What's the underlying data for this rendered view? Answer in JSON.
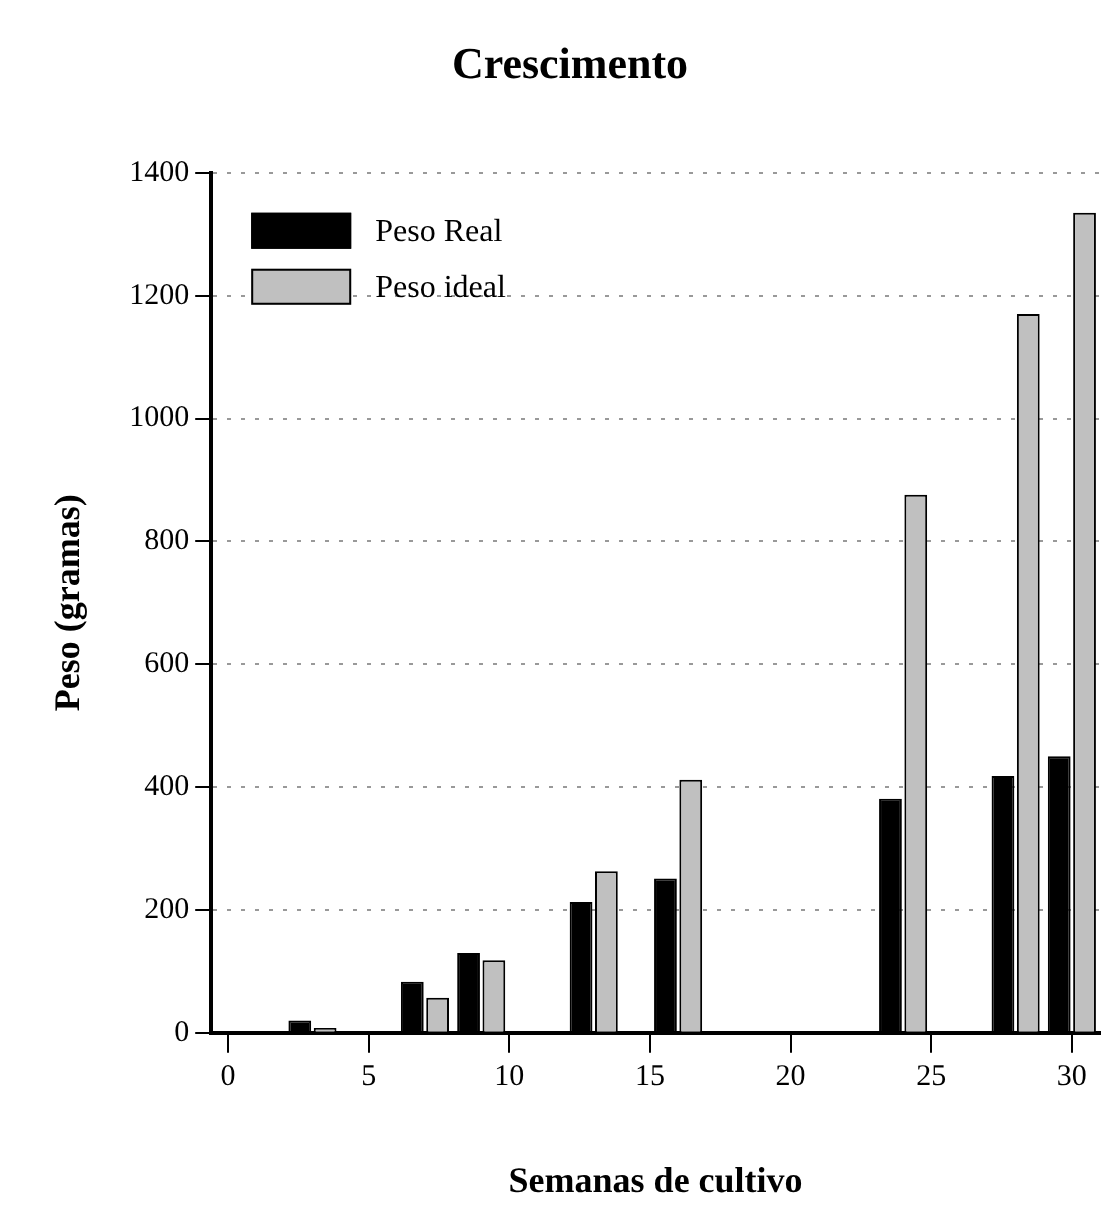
{
  "chart_data": {
    "type": "bar",
    "title": "Crescimento",
    "xlabel": "Semanas de cultivo",
    "ylabel": "Peso (gramas)",
    "x": [
      3,
      7,
      9,
      13,
      16,
      24,
      28,
      30
    ],
    "series": [
      {
        "name": "Peso Real",
        "color": "#000000",
        "values": [
          20,
          83,
          130,
          213,
          251,
          381,
          418,
          450
        ]
      },
      {
        "name": "Peso ideal",
        "color": "#c0c0c0",
        "values": [
          8,
          57,
          118,
          263,
          412,
          876,
          1170,
          1335
        ]
      }
    ],
    "xlim": [
      -0.6,
      31
    ],
    "xticks": [
      0,
      5,
      10,
      15,
      20,
      25,
      30
    ],
    "ylim": [
      0,
      1400
    ],
    "yticks": [
      0,
      200,
      400,
      600,
      800,
      1000,
      1200,
      1400
    ],
    "grid": "y",
    "legend": "top left"
  }
}
